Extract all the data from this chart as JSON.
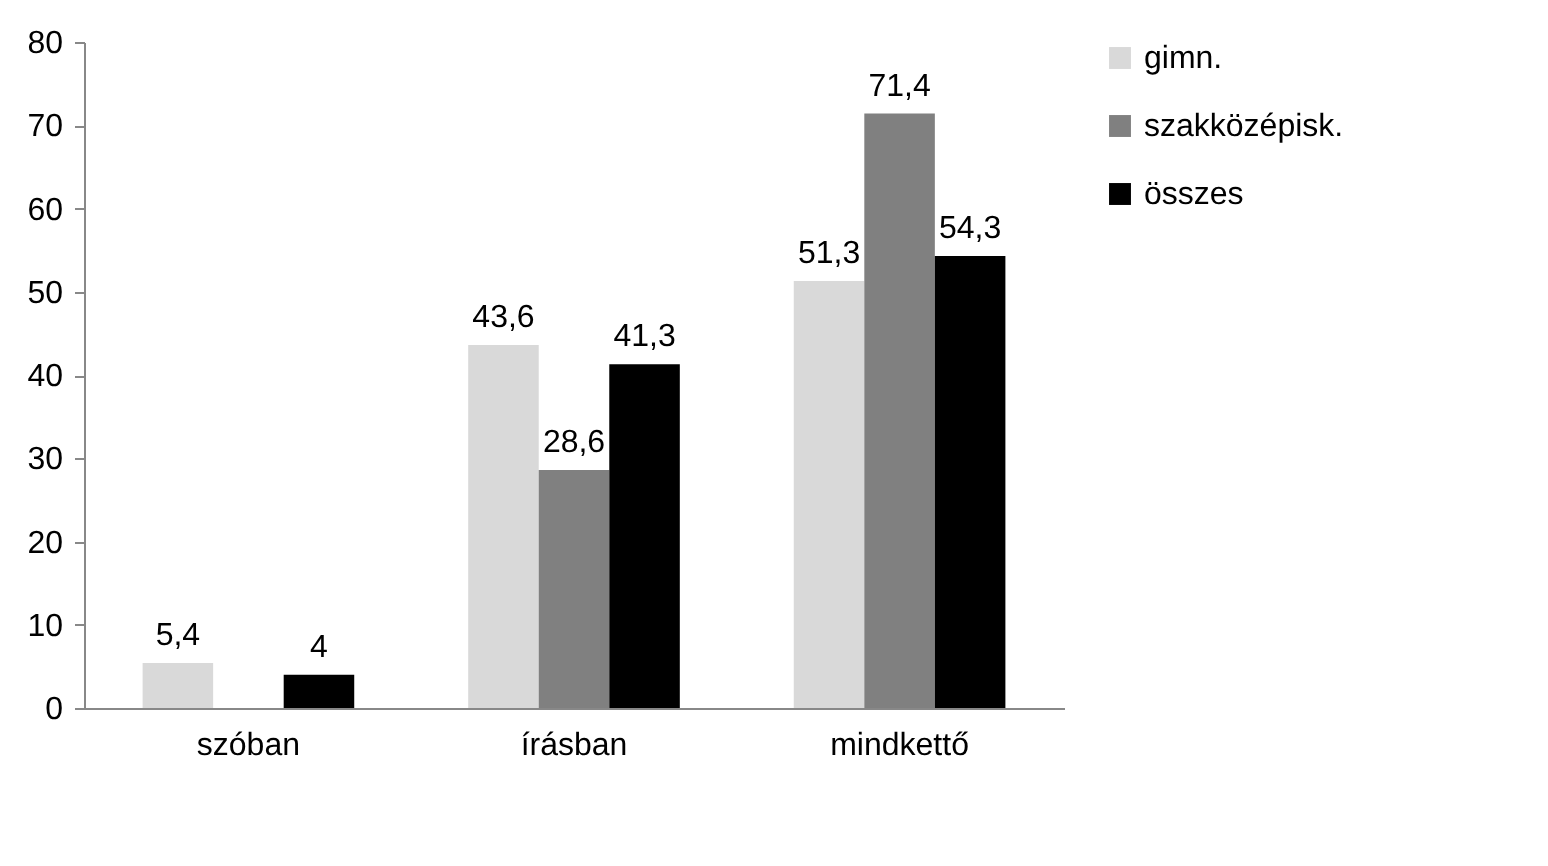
{
  "chart_data": {
    "type": "bar",
    "categories": [
      "szóban",
      "írásban",
      "mindkettő"
    ],
    "series": [
      {
        "name": "gimn.",
        "color": "#d9d9d9",
        "values": [
          5.4,
          43.6,
          51.3
        ],
        "value_labels": [
          "5,4",
          "43,6",
          "51,3"
        ]
      },
      {
        "name": "szakközépisk.",
        "color": "#808080",
        "values": [
          null,
          28.6,
          71.4
        ],
        "value_labels": [
          null,
          "28,6",
          "71,4"
        ]
      },
      {
        "name": "összes",
        "color": "#000000",
        "values": [
          4,
          41.3,
          54.3
        ],
        "value_labels": [
          "4",
          "41,3",
          "54,3"
        ]
      }
    ],
    "ylim": [
      0,
      80
    ],
    "yticks": [
      0,
      10,
      20,
      30,
      40,
      50,
      60,
      70,
      80
    ],
    "grid": false,
    "legend": "right"
  }
}
